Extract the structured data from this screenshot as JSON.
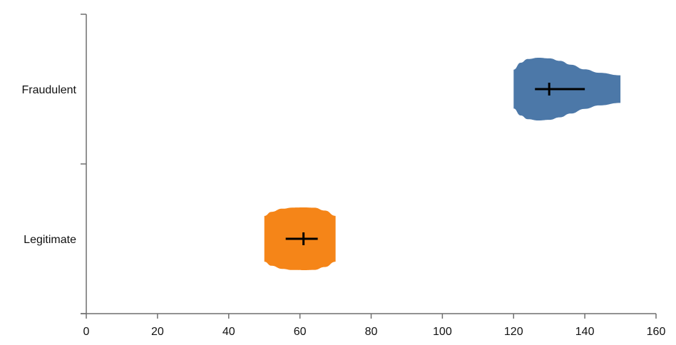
{
  "chart_data": {
    "type": "violin",
    "orientation": "horizontal",
    "title": "",
    "xlabel": "",
    "ylabel": "",
    "xlim": [
      0,
      160
    ],
    "x_ticks": [
      "0",
      "20",
      "40",
      "60",
      "80",
      "100",
      "120",
      "140",
      "160"
    ],
    "categories": [
      "Fraudulent",
      "Legitimate"
    ],
    "grid": false,
    "legend": "none",
    "series": [
      {
        "category": "Fraudulent",
        "color": "#4c78a8",
        "range": [
          120,
          150
        ],
        "iqr": [
          126,
          140
        ],
        "median": 130,
        "density": [
          [
            120,
            0.62
          ],
          [
            122,
            0.84
          ],
          [
            124,
            0.96
          ],
          [
            127,
            1.0
          ],
          [
            130,
            0.98
          ],
          [
            133,
            0.9
          ],
          [
            136,
            0.78
          ],
          [
            140,
            0.63
          ],
          [
            144,
            0.52
          ],
          [
            150,
            0.44
          ]
        ]
      },
      {
        "category": "Legitimate",
        "color": "#f58518",
        "range": [
          50,
          70
        ],
        "iqr": [
          56,
          65
        ],
        "median": 61,
        "density": [
          [
            50,
            0.73
          ],
          [
            52,
            0.86
          ],
          [
            55,
            0.96
          ],
          [
            58,
            0.995
          ],
          [
            61,
            1.0
          ],
          [
            64,
            0.99
          ],
          [
            67,
            0.9
          ],
          [
            70,
            0.73
          ]
        ]
      }
    ]
  }
}
